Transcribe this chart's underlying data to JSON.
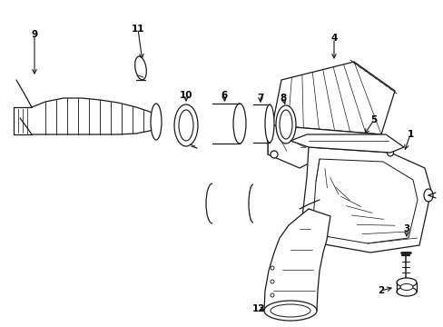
{
  "background": "#ffffff",
  "line_color": "#1a1a1a",
  "lw": 0.9,
  "figsize": [
    4.89,
    3.6
  ],
  "dpi": 100
}
